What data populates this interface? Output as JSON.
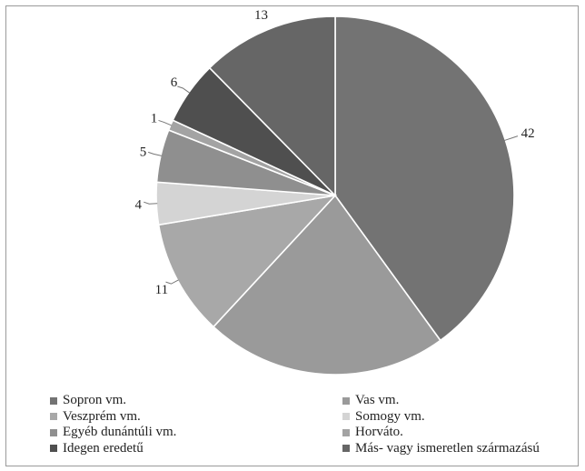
{
  "chart_data": {
    "type": "pie",
    "title": "",
    "start_angle_deg": 90,
    "direction": "clockwise",
    "legend_position": "bottom",
    "slices": [
      {
        "label": "Sopron vm.",
        "value": 42,
        "color": "#737373"
      },
      {
        "label": "Vas vm.",
        "value": 23,
        "color": "#9a9a9a"
      },
      {
        "label": "Veszprém vm.",
        "value": 11,
        "color": "#a8a8a8"
      },
      {
        "label": "Somogy vm.",
        "value": 4,
        "color": "#d4d4d4"
      },
      {
        "label": "Egyéb dunántúli vm.",
        "value": 5,
        "color": "#8f8f8f"
      },
      {
        "label": "Horváto.",
        "value": 1,
        "color": "#a3a3a3"
      },
      {
        "label": "Idegen eredetű",
        "value": 6,
        "color": "#4f4f4f"
      },
      {
        "label": "Más- vagy ismeretlen származású",
        "value": 13,
        "color": "#666666"
      }
    ]
  }
}
